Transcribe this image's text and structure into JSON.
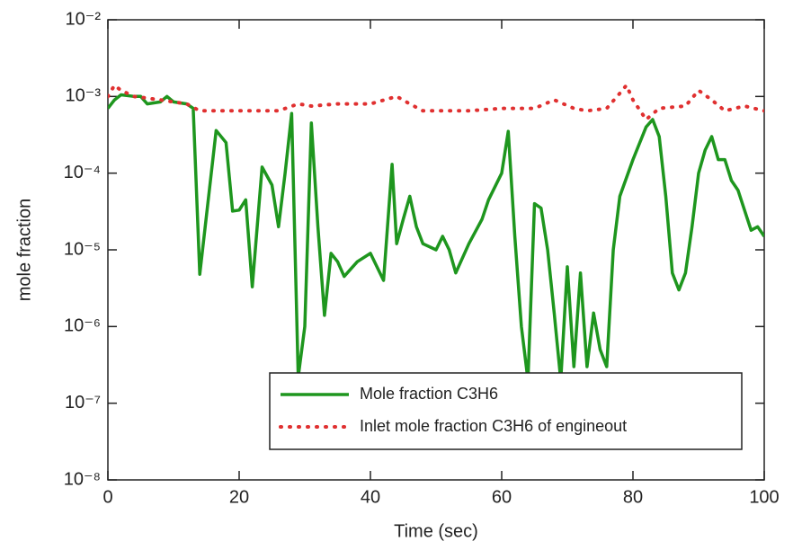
{
  "chart_data": {
    "type": "line",
    "x_label": "Time (sec)",
    "y_label": "mole fraction",
    "yscale": "log",
    "xlim": [
      0,
      100
    ],
    "xticks": [
      0,
      20,
      40,
      60,
      80,
      100
    ],
    "ylim": [
      1e-08,
      0.01
    ],
    "yticks": [
      {
        "value": 1e-08,
        "label": "10⁻⁸"
      },
      {
        "value": 1e-07,
        "label": "10⁻⁷"
      },
      {
        "value": 1e-06,
        "label": "10⁻⁶"
      },
      {
        "value": 1e-05,
        "label": "10⁻⁵"
      },
      {
        "value": 0.0001,
        "label": "10⁻⁴"
      },
      {
        "value": 0.001,
        "label": "10⁻³"
      },
      {
        "value": 0.01,
        "label": "10⁻²"
      }
    ],
    "legend": "lower-right",
    "series": [
      {
        "name": "Mole fraction C3H6",
        "color": "#1e961e",
        "style": "solid",
        "x": [
          0,
          1,
          2,
          4,
          5,
          6,
          8,
          9,
          10,
          12,
          13,
          14,
          16.5,
          18,
          19,
          20,
          21,
          22,
          23.5,
          25,
          26,
          27,
          28,
          29,
          30,
          31,
          32,
          33,
          34,
          35,
          36,
          38,
          40,
          42,
          43.3,
          44,
          45,
          46,
          47,
          48,
          50,
          51,
          52,
          53,
          55,
          57,
          58,
          60,
          61,
          62,
          63,
          64,
          65,
          66,
          67,
          68,
          69,
          70,
          71,
          72,
          73,
          74,
          75,
          76,
          77,
          78,
          80,
          82,
          83,
          84,
          85,
          86,
          87,
          88,
          89,
          90,
          91,
          92,
          93,
          94,
          95,
          96,
          98,
          99,
          100
        ],
        "values": [
          0.0007,
          0.0009,
          0.00105,
          0.001,
          0.001,
          0.0008,
          0.00085,
          0.001,
          0.00085,
          0.0008,
          0.0007,
          4.8e-06,
          0.00036,
          0.00025,
          3.2e-05,
          3.3e-05,
          4.5e-05,
          3.3e-06,
          0.00012,
          7e-05,
          2e-05,
          0.0001,
          0.0006,
          2.2e-07,
          1e-06,
          0.00045,
          2e-05,
          1.4e-06,
          9e-06,
          7e-06,
          4.5e-06,
          7e-06,
          9e-06,
          4e-06,
          0.00013,
          1.2e-05,
          2.5e-05,
          5e-05,
          2e-05,
          1.2e-05,
          1e-05,
          1.5e-05,
          1e-05,
          5e-06,
          1.2e-05,
          2.5e-05,
          4.5e-05,
          0.0001,
          0.00035,
          1.5e-05,
          1e-06,
          2e-07,
          4e-05,
          3.5e-05,
          1e-05,
          1.5e-06,
          2e-07,
          6e-06,
          3e-07,
          5e-06,
          3e-07,
          1.5e-06,
          5e-07,
          3e-07,
          1e-05,
          5e-05,
          0.00015,
          0.0004,
          0.0005,
          0.0003,
          5e-05,
          5e-06,
          3e-06,
          5e-06,
          2e-05,
          0.0001,
          0.0002,
          0.0003,
          0.00015,
          0.00015,
          8e-05,
          6e-05,
          1.8e-05,
          2e-05,
          1.5e-05
        ]
      },
      {
        "name": "Inlet mole fraction C3H6 of engineout",
        "color": "#e03030",
        "style": "dotted",
        "x": [
          0,
          1,
          2,
          4,
          8,
          12,
          14,
          20,
          26,
          29,
          31,
          35,
          40,
          44,
          46,
          48,
          55,
          60,
          65,
          68,
          71,
          73,
          76,
          78,
          79,
          80,
          82,
          84,
          88,
          90,
          92,
          94,
          97,
          100
        ],
        "values": [
          0.001,
          0.0014,
          0.0012,
          0.001,
          0.0009,
          0.0008,
          0.00065,
          0.00065,
          0.00065,
          0.0008,
          0.00075,
          0.0008,
          0.0008,
          0.001,
          0.0008,
          0.00065,
          0.00065,
          0.0007,
          0.0007,
          0.0009,
          0.0007,
          0.00065,
          0.0007,
          0.0011,
          0.0014,
          0.0009,
          0.0005,
          0.0007,
          0.00075,
          0.0012,
          0.0009,
          0.00065,
          0.00075,
          0.00065
        ]
      }
    ]
  }
}
